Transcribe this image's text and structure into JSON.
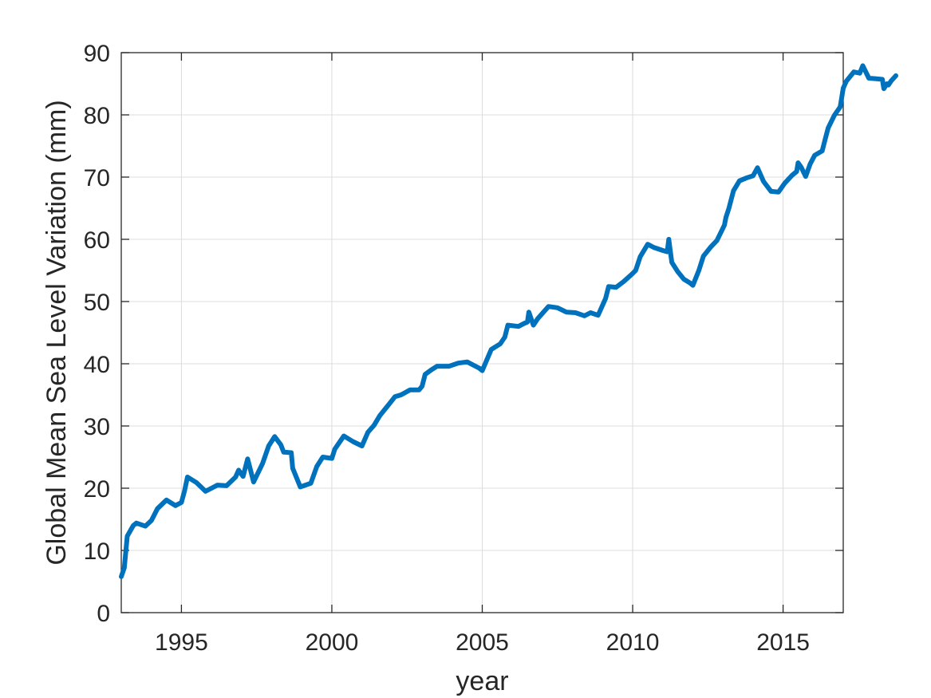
{
  "chart_data": {
    "type": "line",
    "title": "",
    "xlabel": "year",
    "ylabel": "Global Mean Sea Level Variation (mm)",
    "xlim": [
      1993,
      2017
    ],
    "ylim": [
      0,
      90
    ],
    "x_ticks": [
      1995,
      2000,
      2005,
      2010,
      2015
    ],
    "x_tick_labels": [
      "1995",
      "2000",
      "2005",
      "2010",
      "2015"
    ],
    "y_ticks": [
      0,
      10,
      20,
      30,
      40,
      50,
      60,
      70,
      80,
      90
    ],
    "y_tick_labels": [
      "0",
      "10",
      "20",
      "30",
      "40",
      "50",
      "60",
      "70",
      "80",
      "90"
    ],
    "grid": true,
    "line_color": "#0072bd",
    "series": [
      {
        "values": [
          [
            1993.0,
            5.8
          ],
          [
            1993.1,
            7.2
          ],
          [
            1993.2,
            12.3
          ],
          [
            1993.4,
            14.0
          ],
          [
            1993.5,
            14.4
          ],
          [
            1993.8,
            13.9
          ],
          [
            1994.0,
            14.8
          ],
          [
            1994.2,
            16.7
          ],
          [
            1994.5,
            18.1
          ],
          [
            1994.8,
            17.2
          ],
          [
            1995.0,
            17.7
          ],
          [
            1995.1,
            19.5
          ],
          [
            1995.2,
            21.8
          ],
          [
            1995.5,
            20.9
          ],
          [
            1995.8,
            19.5
          ],
          [
            1996.0,
            20.0
          ],
          [
            1996.2,
            20.5
          ],
          [
            1996.5,
            20.4
          ],
          [
            1996.8,
            21.8
          ],
          [
            1996.9,
            22.9
          ],
          [
            1997.05,
            21.9
          ],
          [
            1997.2,
            24.7
          ],
          [
            1997.4,
            21.0
          ],
          [
            1997.7,
            24.0
          ],
          [
            1997.9,
            26.8
          ],
          [
            1998.1,
            28.3
          ],
          [
            1998.3,
            27.0
          ],
          [
            1998.4,
            25.8
          ],
          [
            1998.65,
            25.7
          ],
          [
            1998.7,
            23.2
          ],
          [
            1998.95,
            20.2
          ],
          [
            1999.3,
            20.8
          ],
          [
            1999.5,
            23.5
          ],
          [
            1999.7,
            25.0
          ],
          [
            2000.0,
            24.8
          ],
          [
            2000.1,
            26.3
          ],
          [
            2000.4,
            28.4
          ],
          [
            2000.7,
            27.5
          ],
          [
            2001.0,
            26.8
          ],
          [
            2001.2,
            29.0
          ],
          [
            2001.4,
            30.1
          ],
          [
            2001.6,
            31.7
          ],
          [
            2001.9,
            33.5
          ],
          [
            2002.1,
            34.7
          ],
          [
            2002.3,
            35.0
          ],
          [
            2002.6,
            35.8
          ],
          [
            2002.9,
            35.8
          ],
          [
            2003.0,
            36.4
          ],
          [
            2003.1,
            38.3
          ],
          [
            2003.3,
            39.0
          ],
          [
            2003.5,
            39.6
          ],
          [
            2003.9,
            39.6
          ],
          [
            2004.2,
            40.1
          ],
          [
            2004.5,
            40.3
          ],
          [
            2004.9,
            39.3
          ],
          [
            2005.0,
            38.9
          ],
          [
            2005.3,
            42.3
          ],
          [
            2005.6,
            43.2
          ],
          [
            2005.75,
            44.3
          ],
          [
            2005.85,
            46.2
          ],
          [
            2006.2,
            46.0
          ],
          [
            2006.4,
            46.5
          ],
          [
            2006.5,
            46.7
          ],
          [
            2006.55,
            48.3
          ],
          [
            2006.7,
            46.2
          ],
          [
            2006.85,
            47.3
          ],
          [
            2007.2,
            49.2
          ],
          [
            2007.5,
            49.0
          ],
          [
            2007.8,
            48.3
          ],
          [
            2008.1,
            48.2
          ],
          [
            2008.4,
            47.7
          ],
          [
            2008.6,
            48.2
          ],
          [
            2008.85,
            47.8
          ],
          [
            2009.1,
            50.5
          ],
          [
            2009.2,
            52.4
          ],
          [
            2009.45,
            52.3
          ],
          [
            2009.7,
            53.2
          ],
          [
            2009.95,
            54.3
          ],
          [
            2010.1,
            55.0
          ],
          [
            2010.25,
            57.2
          ],
          [
            2010.5,
            59.2
          ],
          [
            2010.7,
            58.7
          ],
          [
            2011.0,
            58.2
          ],
          [
            2011.15,
            58.0
          ],
          [
            2011.2,
            60.0
          ],
          [
            2011.3,
            56.3
          ],
          [
            2011.5,
            54.8
          ],
          [
            2011.7,
            53.6
          ],
          [
            2011.9,
            53.0
          ],
          [
            2012.0,
            52.6
          ],
          [
            2012.2,
            55.0
          ],
          [
            2012.35,
            57.3
          ],
          [
            2012.6,
            58.8
          ],
          [
            2012.8,
            59.8
          ],
          [
            2012.95,
            61.3
          ],
          [
            2013.05,
            62.3
          ],
          [
            2013.1,
            63.5
          ],
          [
            2013.2,
            65.0
          ],
          [
            2013.35,
            67.8
          ],
          [
            2013.55,
            69.4
          ],
          [
            2013.8,
            69.9
          ],
          [
            2014.0,
            70.2
          ],
          [
            2014.15,
            71.5
          ],
          [
            2014.35,
            69.3
          ],
          [
            2014.6,
            67.7
          ],
          [
            2014.85,
            67.6
          ],
          [
            2015.05,
            69.0
          ],
          [
            2015.3,
            70.3
          ],
          [
            2015.45,
            70.9
          ],
          [
            2015.5,
            72.3
          ],
          [
            2015.6,
            71.6
          ],
          [
            2015.75,
            70.1
          ],
          [
            2015.9,
            72.1
          ],
          [
            2016.05,
            73.5
          ],
          [
            2016.3,
            74.2
          ],
          [
            2016.4,
            76.1
          ],
          [
            2016.5,
            77.9
          ],
          [
            2016.7,
            79.9
          ],
          [
            2016.9,
            81.3
          ],
          [
            2017.0,
            84.3
          ],
          [
            2017.1,
            85.4
          ],
          [
            2017.35,
            86.9
          ],
          [
            2017.55,
            86.7
          ],
          [
            2017.65,
            87.9
          ],
          [
            2017.85,
            85.9
          ],
          [
            2018.1,
            85.8
          ],
          [
            2018.3,
            85.7
          ],
          [
            2018.35,
            84.2
          ],
          [
            2018.45,
            85.0
          ],
          [
            2018.5,
            84.8
          ],
          [
            2018.6,
            85.5
          ],
          [
            2018.75,
            86.3
          ]
        ]
      }
    ]
  }
}
